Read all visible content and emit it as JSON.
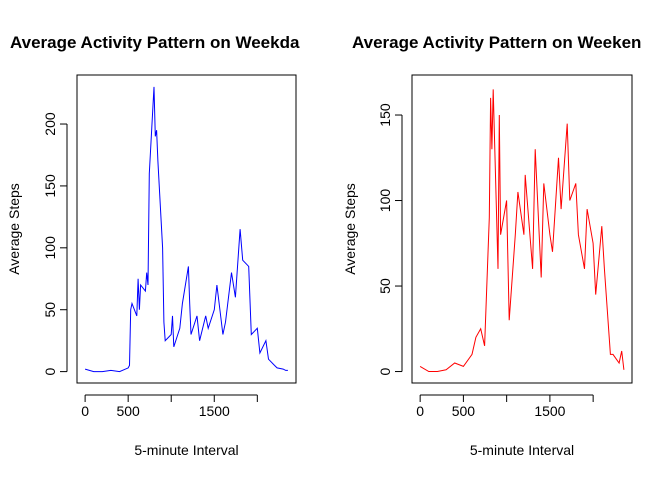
{
  "chart_data": [
    {
      "type": "line",
      "title": "Average Activity Pattern on Weekda",
      "xlabel": "5-minute Interval",
      "ylabel": "Average Steps",
      "color": "#0000ff",
      "x": [
        0,
        100,
        200,
        300,
        400,
        500,
        515,
        530,
        545,
        600,
        615,
        630,
        645,
        700,
        715,
        730,
        745,
        800,
        815,
        830,
        845,
        900,
        915,
        930,
        1000,
        1015,
        1030,
        1100,
        1130,
        1200,
        1215,
        1230,
        1300,
        1330,
        1400,
        1430,
        1500,
        1530,
        1600,
        1630,
        1700,
        1745,
        1800,
        1830,
        1900,
        1930,
        2000,
        2030,
        2100,
        2130,
        2200,
        2230,
        2300,
        2330,
        2355
      ],
      "values": [
        2,
        0,
        0,
        1,
        0,
        3,
        5,
        50,
        55,
        45,
        75,
        50,
        70,
        65,
        80,
        70,
        160,
        230,
        190,
        195,
        170,
        100,
        40,
        25,
        30,
        45,
        20,
        35,
        55,
        85,
        55,
        30,
        45,
        25,
        45,
        35,
        50,
        70,
        30,
        40,
        80,
        60,
        115,
        90,
        85,
        30,
        35,
        15,
        25,
        10,
        5,
        3,
        2,
        1,
        1
      ],
      "xlim": [
        -94.2,
        2449.2
      ],
      "ylim": [
        -9.2,
        239.6
      ],
      "xticks": [
        0,
        500,
        {
          "value": 1000,
          "label": null
        },
        1500,
        {
          "value": 2000,
          "label": null
        }
      ],
      "yticks": [
        0,
        50,
        100,
        150,
        200
      ]
    },
    {
      "type": "line",
      "title": "Average Activity Pattern on Weeken",
      "xlabel": "5-minute Interval",
      "ylabel": "Average Steps",
      "color": "#ff0000",
      "x": [
        0,
        100,
        200,
        300,
        400,
        500,
        600,
        645,
        700,
        745,
        800,
        815,
        830,
        845,
        900,
        915,
        930,
        1000,
        1030,
        1100,
        1130,
        1200,
        1215,
        1300,
        1330,
        1400,
        1430,
        1500,
        1530,
        1600,
        1630,
        1700,
        1730,
        1800,
        1830,
        1900,
        1930,
        2000,
        2030,
        2100,
        2130,
        2200,
        2230,
        2300,
        2330,
        2355
      ],
      "values": [
        3,
        0,
        0,
        1,
        5,
        3,
        10,
        20,
        25,
        15,
        90,
        160,
        130,
        165,
        60,
        150,
        80,
        100,
        30,
        80,
        105,
        80,
        115,
        60,
        130,
        55,
        110,
        80,
        70,
        125,
        95,
        145,
        100,
        110,
        80,
        60,
        95,
        75,
        45,
        85,
        60,
        10,
        10,
        5,
        12,
        1
      ],
      "xlim": [
        -94.2,
        2449.2
      ],
      "ylim": [
        -6.7,
        173.4
      ],
      "xticks": [
        0,
        500,
        {
          "value": 1000,
          "label": null
        },
        1500,
        {
          "value": 2000,
          "label": null
        }
      ],
      "yticks": [
        0,
        50,
        100,
        150
      ]
    }
  ]
}
